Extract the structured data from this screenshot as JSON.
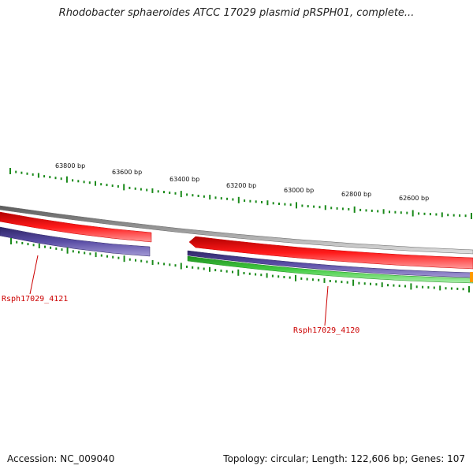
{
  "title": "Rhodobacter sphaeroides ATCC 17029 plasmid pRSPH01, complete...",
  "scale": {
    "unit": "bp",
    "labels": [
      "63800 bp",
      "63600 bp",
      "63400 bp",
      "63200 bp",
      "63000 bp",
      "62800 bp",
      "62600 bp"
    ]
  },
  "genes": [
    {
      "name": "Rsph17029_4121"
    },
    {
      "name": "Rsph17029_4120"
    }
  ],
  "colors": {
    "backbone": "#8a8a8a",
    "feature_red": "#ff0000",
    "feature_purple": "#4a3f8f",
    "feature_green": "#33bb33",
    "tick_green": "#1a8a1a",
    "label_red": "#cc0000"
  },
  "footer": {
    "accession": "Accession: NC_009040",
    "summary": "Topology: circular; Length: 122,606 bp; Genes: 107"
  }
}
